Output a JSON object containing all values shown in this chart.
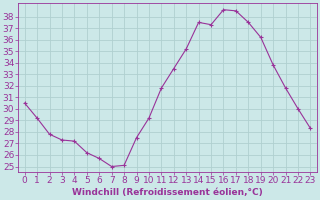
{
  "x": [
    0,
    1,
    2,
    3,
    4,
    5,
    6,
    7,
    8,
    9,
    10,
    11,
    12,
    13,
    14,
    15,
    16,
    17,
    18,
    19,
    20,
    21,
    22,
    23
  ],
  "y": [
    30.5,
    29.2,
    27.8,
    27.3,
    27.2,
    26.2,
    25.7,
    25.0,
    25.1,
    27.5,
    29.2,
    31.8,
    33.5,
    35.2,
    37.5,
    37.3,
    38.6,
    38.5,
    37.5,
    36.2,
    33.8,
    31.8,
    30.0,
    28.3
  ],
  "line_color": "#993399",
  "marker": "+",
  "bg_color": "#cce8e8",
  "grid_color": "#b0d0d0",
  "xlabel": "Windchill (Refroidissement éolien,°C)",
  "yticks": [
    25,
    26,
    27,
    28,
    29,
    30,
    31,
    32,
    33,
    34,
    35,
    36,
    37,
    38
  ],
  "xticks": [
    0,
    1,
    2,
    3,
    4,
    5,
    6,
    7,
    8,
    9,
    10,
    11,
    12,
    13,
    14,
    15,
    16,
    17,
    18,
    19,
    20,
    21,
    22,
    23
  ],
  "ylim": [
    24.5,
    39.2
  ],
  "xlim": [
    -0.5,
    23.5
  ],
  "label_color": "#993399",
  "tick_color": "#993399",
  "font_size": 6.5
}
